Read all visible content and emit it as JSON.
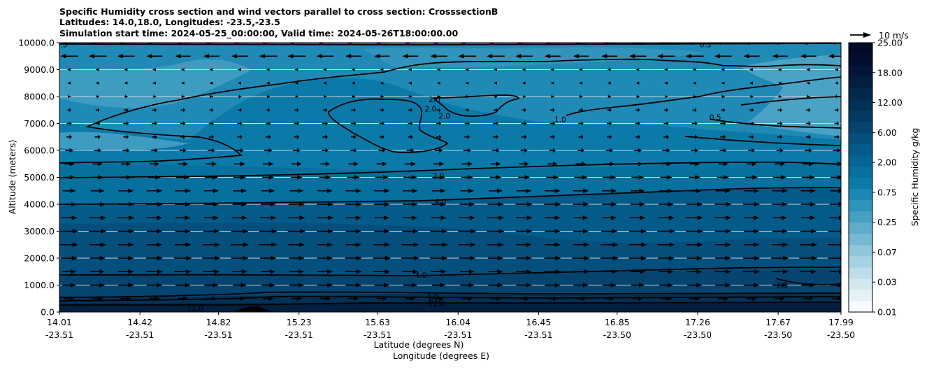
{
  "chart_data": {
    "type": "filled-contour",
    "title_lines": [
      "Specific Humidity cross section and wind vectors parallel to cross section: CrosssectionB",
      "Latitudes: 14.0,18.0, Longitudes: -23.5,-23.5",
      "Simulation start time: 2024-05-25_00:00:00, Valid time: 2024-05-26T18:00:00.00"
    ],
    "ylabel": "Altitude (meters)",
    "xlabel_lines": [
      "Latitude (degrees N)",
      "Longitude (degrees E)"
    ],
    "ylim": [
      0,
      10000
    ],
    "y_ticks": [
      "0.0",
      "1000.0",
      "2000.0",
      "3000.0",
      "4000.0",
      "5000.0",
      "6000.0",
      "7000.0",
      "8000.0",
      "9000.0",
      "10000.0"
    ],
    "x_ticks": [
      {
        "lat": "14.01",
        "lon": "-23.51"
      },
      {
        "lat": "14.42",
        "lon": "-23.51"
      },
      {
        "lat": "14.82",
        "lon": "-23.51"
      },
      {
        "lat": "15.23",
        "lon": "-23.51"
      },
      {
        "lat": "15.63",
        "lon": "-23.51"
      },
      {
        "lat": "16.04",
        "lon": "-23.51"
      },
      {
        "lat": "16.45",
        "lon": "-23.51"
      },
      {
        "lat": "16.85",
        "lon": "-23.50"
      },
      {
        "lat": "17.26",
        "lon": "-23.50"
      },
      {
        "lat": "17.67",
        "lon": "-23.50"
      },
      {
        "lat": "17.99",
        "lon": "-23.50"
      }
    ],
    "grid": "horizontal",
    "colorbar": {
      "label": "Specific Humidity g/kg",
      "tick_labels": [
        "0.01",
        "0.03",
        "0.07",
        "0.25",
        "0.75",
        "2.00",
        "6.00",
        "12.00",
        "18.00",
        "25.00"
      ],
      "colors": [
        "#f7fbff",
        "#e6f1f5",
        "#d2e8ef",
        "#bcdde9",
        "#a6d2e2",
        "#8fc6da",
        "#78b9d2",
        "#5fadca",
        "#46a0c2",
        "#2f94bb",
        "#1b87b2",
        "#0b7aa8",
        "#06709f",
        "#056594",
        "#045a88",
        "#044f7c",
        "#04446f",
        "#033a63",
        "#023156",
        "#02284a",
        "#021f40",
        "#021737",
        "#020f2e",
        "#010a26"
      ]
    },
    "quiver_key": {
      "label": "10 m/s"
    },
    "contour_labels": [
      {
        "text": "0.5",
        "x": 14.02,
        "y": 9930
      },
      {
        "text": "0.5",
        "x": 17.3,
        "y": 9930
      },
      {
        "text": "2.0",
        "x": 15.92,
        "y": 7900
      },
      {
        "text": "2.0",
        "x": 15.9,
        "y": 7550
      },
      {
        "text": "2.0",
        "x": 15.97,
        "y": 7280
      },
      {
        "text": "1.0",
        "x": 16.56,
        "y": 7150
      },
      {
        "text": "0.5",
        "x": 17.35,
        "y": 7230
      },
      {
        "text": "2.0",
        "x": 15.94,
        "y": 5050
      },
      {
        "text": "4.0",
        "x": 15.95,
        "y": 4100
      },
      {
        "text": "4.0",
        "x": 15.85,
        "y": 1380
      },
      {
        "text": "2.0",
        "x": 17.69,
        "y": 1000
      },
      {
        "text": "4.0",
        "x": 15.91,
        "y": 580
      },
      {
        "text": "6.0",
        "x": 15.92,
        "y": 430
      },
      {
        "text": "12.0",
        "x": 15.93,
        "y": 330
      },
      {
        "text": "12.0",
        "x": 14.7,
        "y": 150
      }
    ],
    "terrain": [
      [
        15.0,
        0
      ],
      [
        15.13,
        0
      ]
    ],
    "wind_rows": [
      {
        "y": 10000,
        "u": -7
      },
      {
        "y": 9500,
        "u": -8
      },
      {
        "y": 9000,
        "u": -1
      },
      {
        "y": 8500,
        "u": -1
      },
      {
        "y": 8000,
        "u": -1.5
      },
      {
        "y": 7500,
        "u": 2
      },
      {
        "y": 7000,
        "u": 2.5
      },
      {
        "y": 6500,
        "u": 2.5
      },
      {
        "y": 6000,
        "u": 3.5
      },
      {
        "y": 5500,
        "u": 5
      },
      {
        "y": 5000,
        "u": 6
      },
      {
        "y": 4500,
        "u": 7
      },
      {
        "y": 4000,
        "u": 7.5
      },
      {
        "y": 3500,
        "u": 7.5
      },
      {
        "y": 3000,
        "u": 8
      },
      {
        "y": 2500,
        "u": 8
      },
      {
        "y": 2000,
        "u": 8
      },
      {
        "y": 1500,
        "u": 7.5
      },
      {
        "y": 1000,
        "u": 7
      },
      {
        "y": 500,
        "u": 5
      }
    ]
  }
}
